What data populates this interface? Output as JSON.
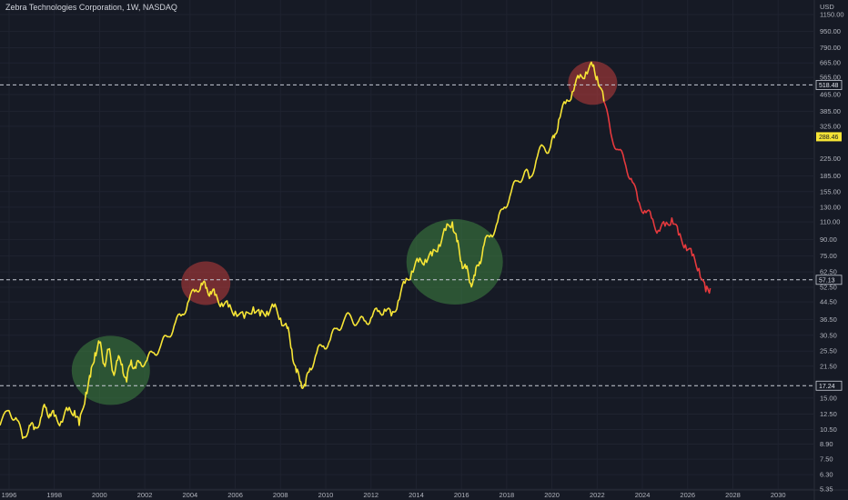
{
  "header": {
    "title": "Zebra Technologies Corporation, 1W, NASDAQ"
  },
  "chart_data": {
    "type": "line",
    "title": "Zebra Technologies Corporation, 1W, NASDAQ",
    "currency": "USD",
    "y_scale": "log",
    "ylim": [
      5.35,
      1150
    ],
    "xlim": [
      1995.6,
      2031.6
    ],
    "x_ticks": [
      "1996",
      "1998",
      "2000",
      "2002",
      "2004",
      "2006",
      "2008",
      "2010",
      "2012",
      "2014",
      "2016",
      "2018",
      "2020",
      "2022",
      "2024",
      "2026",
      "2028",
      "2030"
    ],
    "y_ticks": [
      "1150.00",
      "950.00",
      "790.00",
      "665.00",
      "565.00",
      "465.00",
      "385.00",
      "325.00",
      "225.00",
      "185.00",
      "155.00",
      "130.00",
      "110.00",
      "90.00",
      "75.00",
      "62.50",
      "52.50",
      "44.50",
      "36.50",
      "30.50",
      "25.50",
      "21.50",
      "15.00",
      "12.50",
      "10.50",
      "8.90",
      "7.50",
      "6.30",
      "5.35"
    ],
    "series": [
      {
        "color": "#f7e536",
        "x": [
          1995.6,
          1996.0,
          1996.3,
          1996.6,
          1996.9,
          1997.1,
          1997.4,
          1997.6,
          1997.8,
          1998.0,
          1998.3,
          1998.6,
          1998.9,
          1999.1,
          1999.4,
          1999.6,
          1999.8,
          2000.0,
          2000.2,
          2000.4,
          2000.6,
          2000.8,
          2001.0,
          2001.2,
          2001.4,
          2001.6,
          2001.8,
          2002.1,
          2002.4,
          2002.7,
          2003.0,
          2003.3,
          2003.6,
          2003.9,
          2004.2,
          2004.5,
          2004.7,
          2004.9,
          2005.1,
          2005.4,
          2005.7,
          2006.0,
          2006.4,
          2006.8,
          2007.1,
          2007.4,
          2007.7,
          2008.0,
          2008.3,
          2008.5,
          2008.7,
          2008.9,
          2009.1,
          2009.3,
          2009.6,
          2009.9,
          2010.2,
          2010.5,
          2010.8,
          2011.1,
          2011.4,
          2011.7,
          2012.0,
          2012.3,
          2012.6,
          2012.9,
          2013.2,
          2013.5,
          2013.8,
          2014.1,
          2014.4,
          2014.7,
          2015.0,
          2015.3,
          2015.6,
          2015.8,
          2016.0,
          2016.2,
          2016.4,
          2016.6,
          2016.8,
          2017.0,
          2017.3,
          2017.6,
          2017.9,
          2018.2,
          2018.5,
          2018.8,
          2019.0,
          2019.3,
          2019.6,
          2019.9,
          2020.1,
          2020.3,
          2020.6,
          2020.9,
          2021.2,
          2021.5,
          2021.8,
          2022.0,
          2022.3
        ],
        "y": [
          11.0,
          13.0,
          12.0,
          9.5,
          11.0,
          10.5,
          12.0,
          13.5,
          12.5,
          12.2,
          11.5,
          13.0,
          13.0,
          11.0,
          16.0,
          19.0,
          25.0,
          28.0,
          22.0,
          26.0,
          20.0,
          23.0,
          22.0,
          18.0,
          23.0,
          21.0,
          22.5,
          23.0,
          25.0,
          27.0,
          30.0,
          34.0,
          38.0,
          44.0,
          50.0,
          55.0,
          52.0,
          50.0,
          48.0,
          44.0,
          42.0,
          40.0,
          37.0,
          42.0,
          38.0,
          40.0,
          42.0,
          37.0,
          33.0,
          26.0,
          20.0,
          18.0,
          17.2,
          21.0,
          25.0,
          27.0,
          29.0,
          33.0,
          36.0,
          38.0,
          35.0,
          36.0,
          37.0,
          40.0,
          41.0,
          38.0,
          45.0,
          55.0,
          63.0,
          70.0,
          72.0,
          75.0,
          85.0,
          100.0,
          110.0,
          88.0,
          70.0,
          65.0,
          55.0,
          60.0,
          70.0,
          85.0,
          95.0,
          110.0,
          130.0,
          155.0,
          175.0,
          195.0,
          180.0,
          220.0,
          260.0,
          250.0,
          285.0,
          350.0,
          420.0,
          480.0,
          560.0,
          600.0,
          640.0,
          570.0,
          430.0
        ]
      },
      {
        "color": "#e5393d",
        "x": [
          2022.3,
          2022.6,
          2022.9,
          2023.2,
          2023.5,
          2023.8,
          2024.1,
          2024.4,
          2024.7,
          2025.0,
          2025.3,
          2025.6,
          2025.9,
          2026.2,
          2026.5,
          2026.8,
          2027.0
        ],
        "y": [
          430.0,
          300.0,
          250.0,
          220.0,
          180.0,
          140.0,
          125.0,
          115.0,
          100.0,
          105.0,
          115.0,
          95.0,
          85.0,
          75.0,
          65.0,
          50.0,
          52.0
        ]
      }
    ],
    "horizontal_levels": [
      {
        "value": 518.48,
        "label": "518.48"
      },
      {
        "value": 57.13,
        "label": "57.13"
      },
      {
        "value": 17.24,
        "label": "17.24"
      }
    ],
    "last_price": {
      "value": 288.46,
      "label": "288.46"
    },
    "highlight_circles": [
      {
        "x": 2000.5,
        "y": 20.5,
        "color": "#3c7c3f",
        "kind": "support"
      },
      {
        "x": 2004.7,
        "y": 55.0,
        "color": "#b23a3a",
        "kind": "resistance"
      },
      {
        "x": 2015.7,
        "y": 70.0,
        "color": "#3c7c3f",
        "kind": "support"
      },
      {
        "x": 2021.8,
        "y": 530.0,
        "color": "#b23a3a",
        "kind": "resistance"
      }
    ]
  }
}
